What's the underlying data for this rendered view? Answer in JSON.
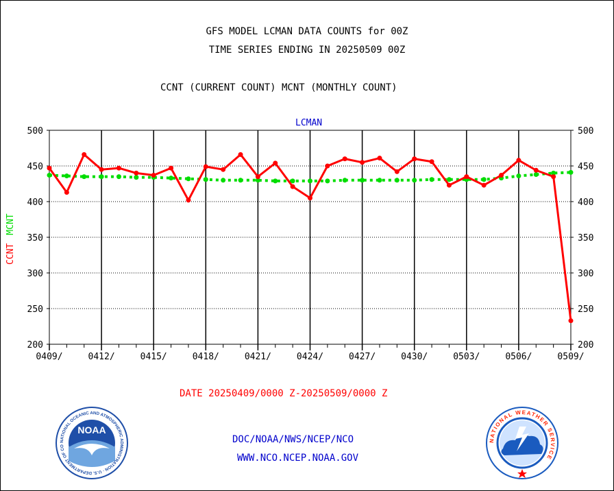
{
  "chart_data": {
    "type": "line",
    "title": "GFS MODEL LCMAN DATA COUNTS for 00Z",
    "subtitle": "TIME SERIES ENDING IN 20250509 00Z",
    "description": "CCNT (CURRENT COUNT) MCNT (MONTHLY COUNT)",
    "panel_label": "LCMAN",
    "ylabel_ccnt": "CCNT",
    "ylabel_mcnt": "MCNT",
    "ylim": [
      200,
      500
    ],
    "yticks": [
      200,
      250,
      300,
      350,
      400,
      450,
      500
    ],
    "xtick_labels": [
      "0409/",
      "0412/",
      "0415/",
      "0418/",
      "0421/",
      "0424/",
      "0427/",
      "0430/",
      "0503/",
      "0506/",
      "0509/"
    ],
    "xlabel": "DATE 20250409/0000 Z-20250509/0000 Z",
    "grid": true,
    "series": [
      {
        "name": "CCNT",
        "color": "#ff0000",
        "values": [
          447,
          413,
          466,
          445,
          447,
          440,
          437,
          447,
          402,
          449,
          445,
          466,
          435,
          454,
          421,
          405,
          450,
          460,
          455,
          461,
          442,
          460,
          456,
          423,
          435,
          423,
          437,
          458,
          444,
          435,
          233
        ]
      },
      {
        "name": "MCNT",
        "color": "#00dd00",
        "values": [
          437,
          436,
          435,
          435,
          435,
          434,
          434,
          433,
          432,
          431,
          430,
          430,
          430,
          429,
          429,
          429,
          429,
          430,
          430,
          430,
          430,
          430,
          431,
          431,
          431,
          431,
          433,
          436,
          438,
          440,
          441
        ]
      }
    ]
  },
  "footer": {
    "agency_path": "DOC/NOAA/NWS/NCEP/NCO",
    "website": "WWW.NCO.NCEP.NOAA.GOV"
  },
  "logos": {
    "noaa_text": "NOAA",
    "noaa_ring": "NATIONAL OCEANIC AND ATMOSPHERIC ADMINISTRATION · U.S. DEPARTMENT OF COMMERCE",
    "nws_ring": "NATIONAL WEATHER SERVICE"
  },
  "colors": {
    "ccnt": "#ff0000",
    "mcnt": "#00dd00",
    "label_blue": "#0000cc",
    "noaa_blue": "#1f4fa8",
    "nws_blue": "#1a5bbf"
  }
}
